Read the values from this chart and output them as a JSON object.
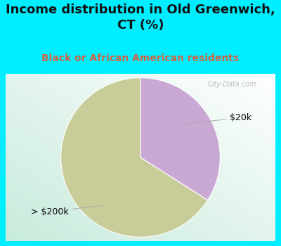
{
  "title": "Income distribution in Old Greenwich,\nCT (%)",
  "subtitle": "Black or African American residents",
  "slices": [
    {
      "label": "> $200k",
      "value": 66,
      "color": "#c8cc99"
    },
    {
      "label": "$20k",
      "value": 34,
      "color": "#c9a8d4"
    }
  ],
  "background_color": "#00eeff",
  "title_color": "#111111",
  "subtitle_color": "#cc6644",
  "title_fontsize": 13,
  "subtitle_fontsize": 10,
  "label_fontsize": 9,
  "startangle": 90,
  "watermark": "City-Data.com"
}
